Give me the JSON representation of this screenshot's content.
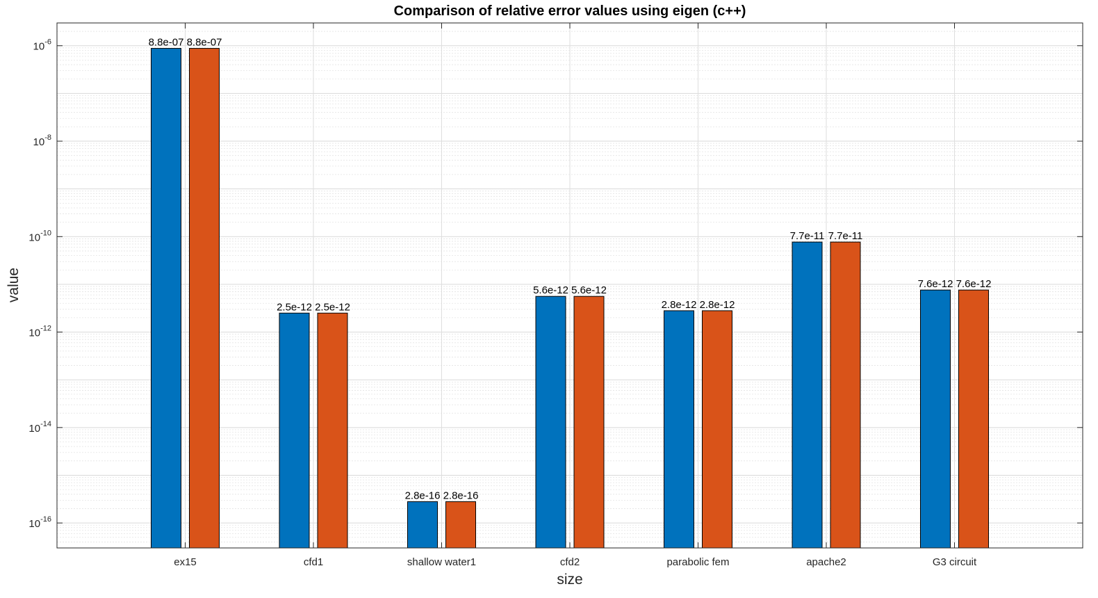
{
  "chart_data": {
    "type": "bar",
    "title": "Comparison of relative error values using eigen (c++)",
    "xlabel": "size",
    "ylabel": "value",
    "yscale": "log",
    "ylim": [
      3e-17,
      3e-06
    ],
    "grid": true,
    "categories": [
      "ex15",
      "cfd1",
      "shallow water1",
      "cfd2",
      "parabolic fem",
      "apache2",
      "G3 circuit"
    ],
    "series": [
      {
        "values": [
          8.8e-07,
          2.5e-12,
          2.8e-16,
          5.6e-12,
          2.8e-12,
          7.7e-11,
          7.6e-12
        ],
        "labels": [
          "8.8e-07",
          "2.5e-12",
          "2.8e-16",
          "5.6e-12",
          "2.8e-12",
          "7.7e-11",
          "7.6e-12"
        ],
        "color": "#0072BD"
      },
      {
        "values": [
          8.8e-07,
          2.5e-12,
          2.8e-16,
          5.6e-12,
          2.8e-12,
          7.7e-11,
          7.6e-12
        ],
        "labels": [
          "8.8e-07",
          "2.5e-12",
          "2.8e-16",
          "5.6e-12",
          "2.8e-12",
          "7.7e-11",
          "7.6e-12"
        ],
        "color": "#D95319"
      }
    ],
    "yticks": [
      {
        "base": "10",
        "exp": "-16",
        "value": 1e-16
      },
      {
        "base": "10",
        "exp": "-14",
        "value": 1e-14
      },
      {
        "base": "10",
        "exp": "-12",
        "value": 1e-12
      },
      {
        "base": "10",
        "exp": "-10",
        "value": 1e-10
      },
      {
        "base": "10",
        "exp": "-8",
        "value": 1e-08
      },
      {
        "base": "10",
        "exp": "-6",
        "value": 1e-06
      }
    ]
  }
}
